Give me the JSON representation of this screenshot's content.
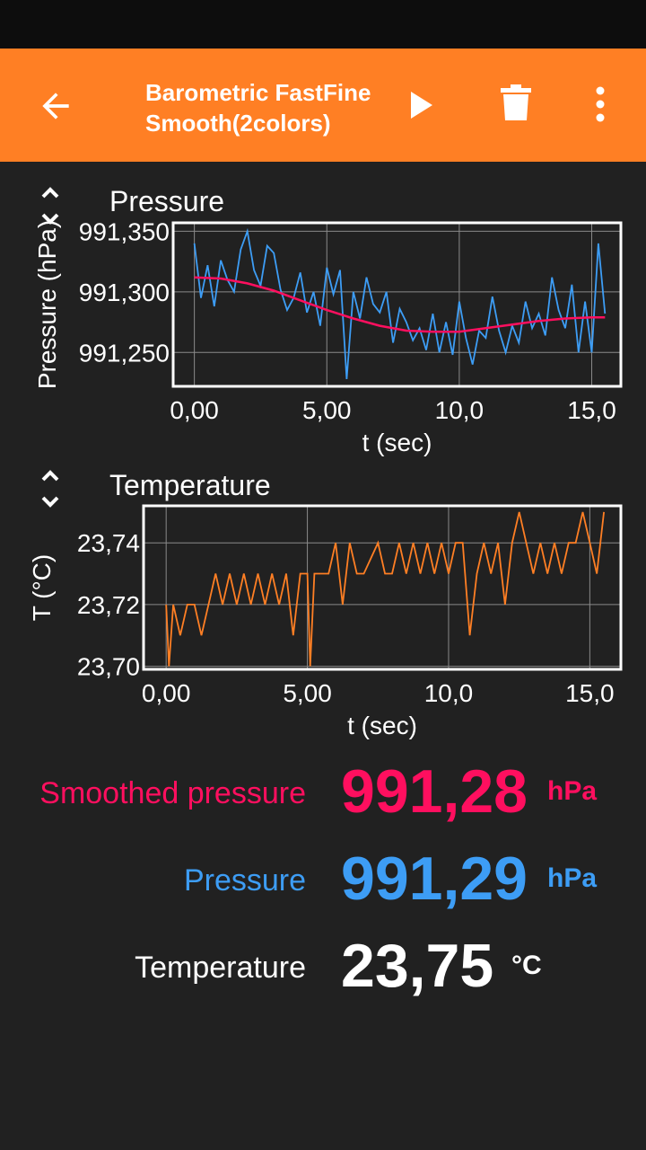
{
  "app_bar": {
    "title": "Barometric FastFineSmooth(2colors)",
    "icons": [
      "back-arrow-icon",
      "play-icon",
      "trash-icon",
      "more-vert-icon"
    ]
  },
  "colors": {
    "accent": "#ff7f24",
    "raw": "#3d9df5",
    "smoothed": "#ff0f5f",
    "temp": "#ff7f24",
    "bg": "#212121"
  },
  "values": [
    {
      "label": "Smoothed pressure",
      "value": "991,28",
      "unit": "hPa",
      "color": "#ff0f5f"
    },
    {
      "label": "Pressure",
      "value": "991,29",
      "unit": "hPa",
      "color": "#3d9df5"
    },
    {
      "label": "Temperature",
      "value": "23,75",
      "unit": "°C",
      "color": "#ffffff"
    }
  ],
  "chart_data": [
    {
      "type": "line",
      "title": "Pressure",
      "xlabel": "t (sec)",
      "ylabel": "Pressure (hPa)",
      "xlim": [
        -0.8,
        16.1
      ],
      "ylim": [
        991.222,
        991.357
      ],
      "xticks": [
        0,
        5,
        10,
        15
      ],
      "xtick_labels": [
        "0,00",
        "5,00",
        "10,0",
        "15,0"
      ],
      "yticks": [
        991.25,
        991.3,
        991.35
      ],
      "ytick_labels": [
        "991,250",
        "991,300",
        "991,350"
      ],
      "grid": true,
      "series": [
        {
          "name": "Pressure",
          "color": "#3d9df5",
          "x": [
            0,
            0.25,
            0.5,
            0.75,
            1,
            1.25,
            1.5,
            1.75,
            2,
            2.25,
            2.5,
            2.75,
            3,
            3.25,
            3.5,
            3.75,
            4,
            4.25,
            4.5,
            4.75,
            5,
            5.25,
            5.5,
            5.75,
            6,
            6.25,
            6.5,
            6.75,
            7,
            7.25,
            7.5,
            7.75,
            8,
            8.25,
            8.5,
            8.75,
            9,
            9.25,
            9.5,
            9.75,
            10,
            10.25,
            10.5,
            10.75,
            11,
            11.25,
            11.5,
            11.75,
            12,
            12.25,
            12.5,
            12.75,
            13,
            13.25,
            13.5,
            13.75,
            14,
            14.25,
            14.5,
            14.75,
            15,
            15.25,
            15.5
          ],
          "y": [
            991.34,
            991.295,
            991.322,
            991.288,
            991.326,
            991.31,
            991.3,
            991.335,
            991.35,
            991.318,
            991.305,
            991.338,
            991.332,
            991.302,
            991.285,
            991.295,
            991.316,
            991.283,
            991.3,
            991.272,
            991.32,
            991.298,
            991.318,
            991.228,
            991.3,
            991.278,
            991.312,
            991.29,
            991.283,
            991.3,
            991.258,
            991.286,
            991.275,
            991.26,
            991.27,
            991.252,
            991.282,
            991.25,
            991.275,
            991.248,
            991.292,
            991.262,
            991.24,
            991.268,
            991.262,
            991.296,
            991.268,
            991.25,
            991.272,
            991.258,
            991.292,
            991.27,
            991.282,
            991.264,
            991.312,
            991.285,
            991.27,
            991.306,
            991.25,
            991.292,
            991.25,
            991.34,
            991.282
          ]
        },
        {
          "name": "Smoothed pressure",
          "color": "#ff0f5f",
          "x": [
            0,
            1,
            2,
            3,
            4,
            5,
            6,
            7,
            8,
            9,
            10,
            11,
            12,
            13,
            14,
            15,
            15.5
          ],
          "y": [
            991.312,
            991.311,
            991.307,
            991.301,
            991.293,
            991.285,
            991.278,
            991.272,
            991.268,
            991.267,
            991.267,
            991.27,
            991.273,
            991.276,
            991.278,
            991.279,
            991.279
          ]
        }
      ]
    },
    {
      "type": "line",
      "title": "Temperature",
      "xlabel": "t (sec)",
      "ylabel": "T (°C)",
      "xlim": [
        -0.8,
        16.1
      ],
      "ylim": [
        23.699,
        23.752
      ],
      "xticks": [
        0,
        5,
        10,
        15
      ],
      "xtick_labels": [
        "0,00",
        "5,00",
        "10,0",
        "15,0"
      ],
      "yticks": [
        23.7,
        23.72,
        23.74
      ],
      "ytick_labels": [
        "23,70",
        "23,72",
        "23,74"
      ],
      "grid": true,
      "series": [
        {
          "name": "Temperature",
          "color": "#ff7f24",
          "x": [
            0,
            0.1,
            0.25,
            0.5,
            0.75,
            1,
            1.25,
            1.5,
            1.75,
            2,
            2.25,
            2.5,
            2.75,
            3,
            3.25,
            3.5,
            3.75,
            4,
            4.25,
            4.5,
            4.75,
            5,
            5.1,
            5.25,
            5.5,
            5.75,
            6,
            6.25,
            6.5,
            6.75,
            7,
            7.5,
            7.75,
            8,
            8.25,
            8.5,
            8.75,
            9,
            9.25,
            9.5,
            9.75,
            10,
            10.25,
            10.5,
            10.75,
            11,
            11.25,
            11.5,
            11.75,
            12,
            12.25,
            12.5,
            12.75,
            13,
            13.25,
            13.5,
            13.75,
            14,
            14.25,
            14.5,
            14.75,
            15,
            15.25,
            15.5
          ],
          "y": [
            23.72,
            23.7,
            23.72,
            23.71,
            23.72,
            23.72,
            23.71,
            23.72,
            23.73,
            23.72,
            23.73,
            23.72,
            23.73,
            23.72,
            23.73,
            23.72,
            23.73,
            23.72,
            23.73,
            23.71,
            23.73,
            23.73,
            23.7,
            23.73,
            23.73,
            23.73,
            23.74,
            23.72,
            23.74,
            23.73,
            23.73,
            23.74,
            23.73,
            23.73,
            23.74,
            23.73,
            23.74,
            23.73,
            23.74,
            23.73,
            23.74,
            23.73,
            23.74,
            23.74,
            23.71,
            23.73,
            23.74,
            23.73,
            23.74,
            23.72,
            23.74,
            23.75,
            23.74,
            23.73,
            23.74,
            23.73,
            23.74,
            23.73,
            23.74,
            23.74,
            23.75,
            23.74,
            23.73,
            23.75
          ]
        }
      ]
    }
  ]
}
